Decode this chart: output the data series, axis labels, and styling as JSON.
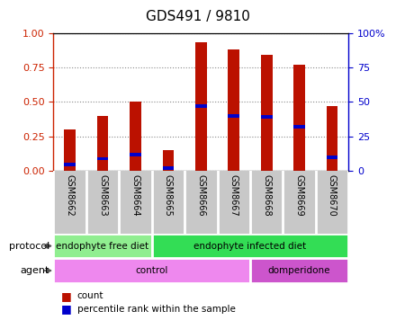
{
  "title": "GDS491 / 9810",
  "samples": [
    "GSM8662",
    "GSM8663",
    "GSM8664",
    "GSM8665",
    "GSM8666",
    "GSM8667",
    "GSM8668",
    "GSM8669",
    "GSM8670"
  ],
  "red_values": [
    0.3,
    0.4,
    0.5,
    0.15,
    0.93,
    0.88,
    0.84,
    0.77,
    0.47
  ],
  "blue_values": [
    0.05,
    0.09,
    0.12,
    0.02,
    0.47,
    0.4,
    0.39,
    0.32,
    0.1
  ],
  "protocol_groups": [
    {
      "label": "endophyte free diet",
      "start": 0,
      "end": 3,
      "color": "#90EE90"
    },
    {
      "label": "endophyte infected diet",
      "start": 3,
      "end": 9,
      "color": "#33DD55"
    }
  ],
  "agent_groups": [
    {
      "label": "control",
      "start": 0,
      "end": 6,
      "color": "#EE88EE"
    },
    {
      "label": "domperidone",
      "start": 6,
      "end": 9,
      "color": "#CC55CC"
    }
  ],
  "bar_width": 0.35,
  "red_color": "#BB1100",
  "blue_color": "#0000CC",
  "left_yticks": [
    0,
    0.25,
    0.5,
    0.75,
    1.0
  ],
  "right_yticks": [
    0,
    25,
    50,
    75,
    100
  ],
  "left_tick_color": "#CC2200",
  "right_tick_color": "#0000CC",
  "grid_color": "#888888",
  "bg_color": "#ffffff",
  "protocol_label": "protocol",
  "agent_label": "agent",
  "sample_bg": "#C8C8C8"
}
